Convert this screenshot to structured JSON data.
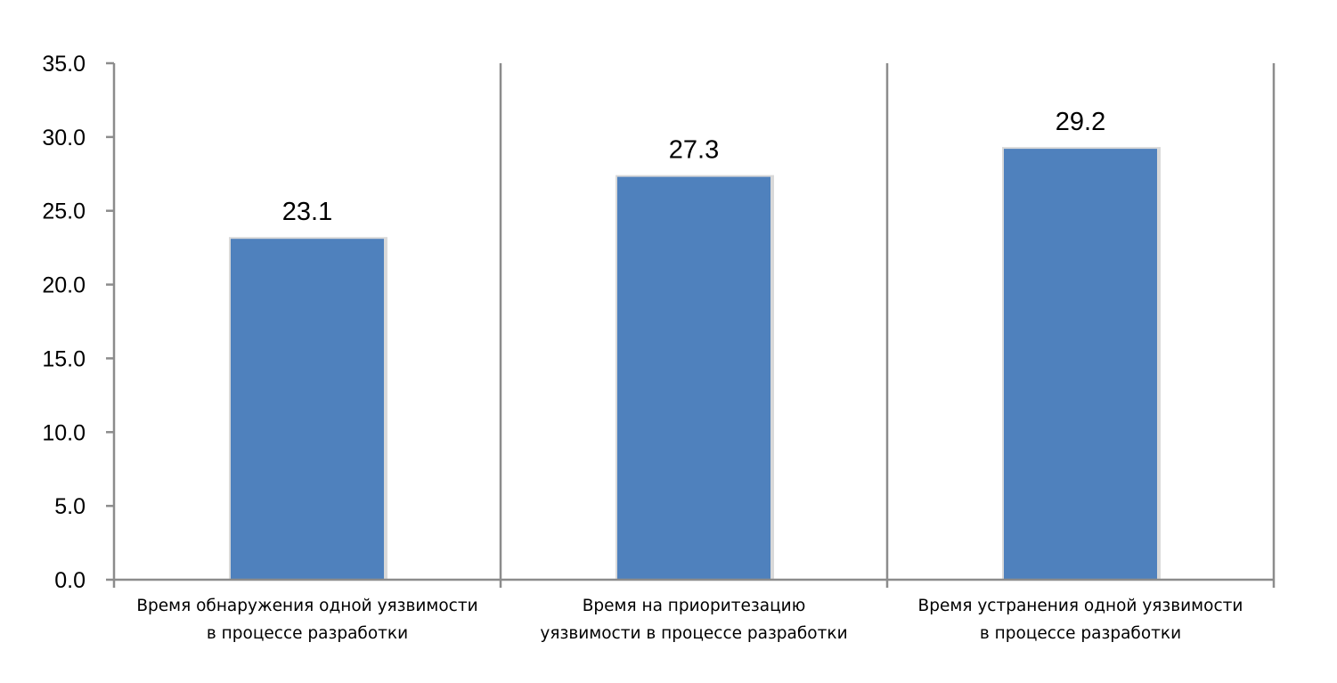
{
  "chart_data": {
    "type": "bar",
    "title": "",
    "xlabel": "",
    "ylabel": "",
    "ylim": [
      0,
      35
    ],
    "y_ticks": [
      0,
      5,
      10,
      15,
      20,
      25,
      30,
      35
    ],
    "y_tick_labels": [
      "0.0",
      "5.0",
      "10.0",
      "15.0",
      "20.0",
      "25.0",
      "30.0",
      "35.0"
    ],
    "categories": [
      [
        "Время обнаружения одной уязвимости",
        "в процессе разработки"
      ],
      [
        "Время на приоритезацию",
        "уязвимости в процессе разработки"
      ],
      [
        "Время устранения одной уязвимости",
        "в процессе разработки"
      ]
    ],
    "values": [
      23.1,
      27.3,
      29.2
    ],
    "data_labels": [
      "23.1",
      "27.3",
      "29.2"
    ],
    "bar_color": "#4f81bd",
    "axis_color": "#8c8c8c",
    "grid": false,
    "legend": "none"
  }
}
